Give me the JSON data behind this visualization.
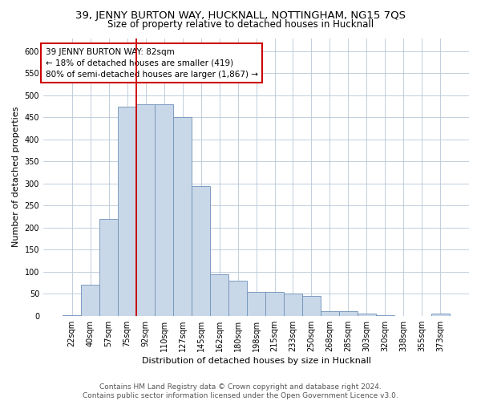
{
  "title": "39, JENNY BURTON WAY, HUCKNALL, NOTTINGHAM, NG15 7QS",
  "subtitle": "Size of property relative to detached houses in Hucknall",
  "xlabel": "Distribution of detached houses by size in Hucknall",
  "ylabel": "Number of detached properties",
  "footer_line1": "Contains HM Land Registry data © Crown copyright and database right 2024.",
  "footer_line2": "Contains public sector information licensed under the Open Government Licence v3.0.",
  "annotation_line1": "39 JENNY BURTON WAY: 82sqm",
  "annotation_line2": "← 18% of detached houses are smaller (419)",
  "annotation_line3": "80% of semi-detached houses are larger (1,867) →",
  "bar_color": "#c8d8e8",
  "bar_edgecolor": "#7090b8",
  "vline_color": "#cc0000",
  "annotation_box_edgecolor": "#cc0000",
  "background_color": "#ffffff",
  "grid_color": "#b8c8d8",
  "categories": [
    "22sqm",
    "40sqm",
    "57sqm",
    "75sqm",
    "92sqm",
    "110sqm",
    "127sqm",
    "145sqm",
    "162sqm",
    "180sqm",
    "198sqm",
    "215sqm",
    "233sqm",
    "250sqm",
    "268sqm",
    "285sqm",
    "303sqm",
    "320sqm",
    "338sqm",
    "355sqm",
    "373sqm"
  ],
  "values": [
    2,
    70,
    220,
    475,
    480,
    480,
    450,
    295,
    95,
    80,
    55,
    55,
    50,
    45,
    10,
    10,
    5,
    2,
    0,
    0,
    5
  ],
  "ylim": [
    0,
    630
  ],
  "yticks": [
    0,
    50,
    100,
    150,
    200,
    250,
    300,
    350,
    400,
    450,
    500,
    550,
    600
  ],
  "vline_x_index": 3.5,
  "title_fontsize": 9.5,
  "subtitle_fontsize": 8.5,
  "xlabel_fontsize": 8,
  "ylabel_fontsize": 8,
  "tick_fontsize": 7,
  "annotation_fontsize": 7.5,
  "footer_fontsize": 6.5
}
